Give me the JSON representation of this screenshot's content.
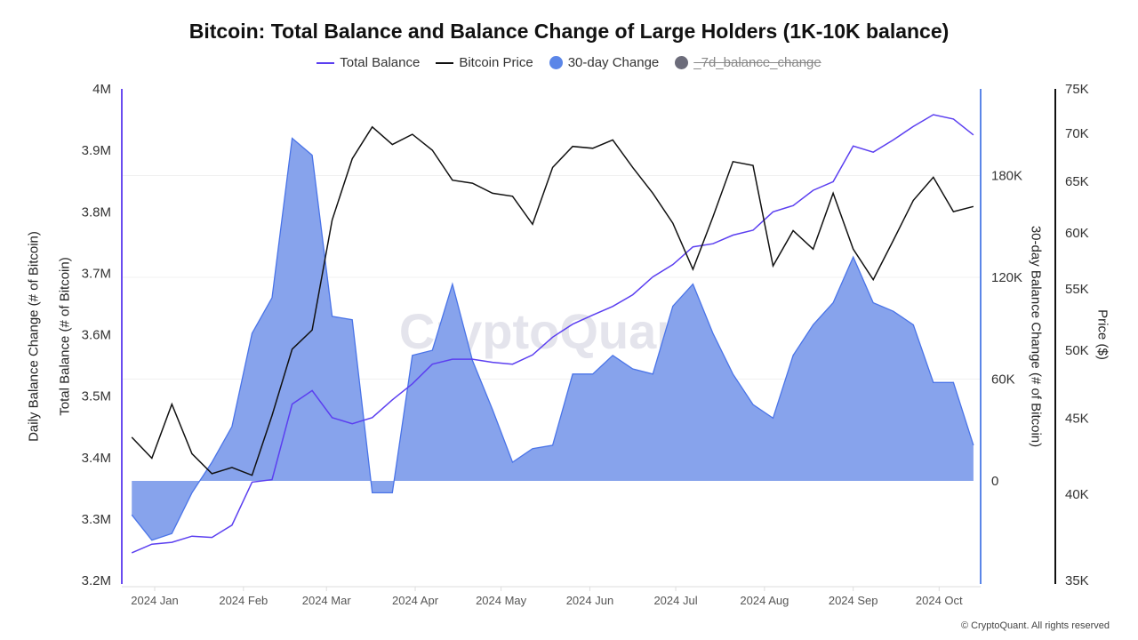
{
  "title": "Bitcoin: Total Balance and Balance Change of Large Holders (1K-10K balance)",
  "legend": [
    {
      "label": "Total Balance",
      "color": "#5b3ff0",
      "shape": "line",
      "visible": true
    },
    {
      "label": "Bitcoin Price",
      "color": "#111111",
      "shape": "line",
      "visible": true
    },
    {
      "label": "30-day Change",
      "color": "#5b86e8",
      "shape": "circle",
      "visible": true
    },
    {
      "label": "_7d_balance_change",
      "color": "#6c6c7a",
      "shape": "circle",
      "visible": false
    }
  ],
  "watermark": "CryptoQuant",
  "copyright": "© CryptoQuant. All rights reserved",
  "chart_data": {
    "type": "line",
    "title": "Bitcoin: Total Balance and Balance Change of Large Holders (1K-10K balance)",
    "x_tick_labels": [
      "2024 Jan",
      "2024 Feb",
      "2024 Mar",
      "2024 Apr",
      "2024 May",
      "2024 Jun",
      "2024 Jul",
      "2024 Aug",
      "2024 Sep",
      "2024 Oct"
    ],
    "x_tick_dates": [
      "2024-01-01",
      "2024-02-01",
      "2024-03-01",
      "2024-04-01",
      "2024-05-01",
      "2024-06-01",
      "2024-07-01",
      "2024-08-01",
      "2024-09-01",
      "2024-10-01"
    ],
    "axes": {
      "left_outer_label": "Daily Balance Change (# of Bitcoin)",
      "left_label": "Total Balance (# of Bitcoin)",
      "left_ticks": [
        "4M",
        "3.9M",
        "3.8M",
        "3.7M",
        "3.6M",
        "3.5M",
        "3.4M",
        "3.3M",
        "3.2M"
      ],
      "left_range": [
        3200000,
        4000000
      ],
      "right_inner_label": "30-day Balance Change (# of Bitcoin)",
      "right_inner_ticks": [
        "180K",
        "120K",
        "60K",
        "0"
      ],
      "right_inner_tick_values": [
        180000,
        120000,
        60000,
        0
      ],
      "right_outer_label": "Price ($)",
      "right_outer_ticks": [
        "75K",
        "70K",
        "65K",
        "60K",
        "55K",
        "50K",
        "45K",
        "40K",
        "35K"
      ],
      "right_outer_tick_values": [
        75000,
        70000,
        65000,
        60000,
        55000,
        50000,
        45000,
        40000,
        35000
      ],
      "right_outer_range": [
        35000,
        75000
      ],
      "right_outer_scale": "log",
      "grid": true
    },
    "x": [
      "2023-12-24",
      "2023-12-31",
      "2024-01-07",
      "2024-01-14",
      "2024-01-21",
      "2024-01-28",
      "2024-02-04",
      "2024-02-11",
      "2024-02-18",
      "2024-02-25",
      "2024-03-03",
      "2024-03-10",
      "2024-03-17",
      "2024-03-24",
      "2024-03-31",
      "2024-04-07",
      "2024-04-14",
      "2024-04-21",
      "2024-04-28",
      "2024-05-05",
      "2024-05-12",
      "2024-05-19",
      "2024-05-26",
      "2024-06-02",
      "2024-06-09",
      "2024-06-16",
      "2024-06-23",
      "2024-06-30",
      "2024-07-07",
      "2024-07-14",
      "2024-07-21",
      "2024-07-28",
      "2024-08-04",
      "2024-08-11",
      "2024-08-18",
      "2024-08-25",
      "2024-09-01",
      "2024-09-08",
      "2024-09-15",
      "2024-09-22",
      "2024-09-29",
      "2024-10-06",
      "2024-10-13"
    ],
    "series": [
      {
        "name": "Total Balance",
        "axis": "left",
        "color": "#5b3ff0",
        "values": [
          3245000,
          3259000,
          3262000,
          3272000,
          3270000,
          3290000,
          3360000,
          3364000,
          3487000,
          3509000,
          3465000,
          3455000,
          3465000,
          3494000,
          3520000,
          3552000,
          3560000,
          3560000,
          3555000,
          3552000,
          3567000,
          3596000,
          3617000,
          3632000,
          3646000,
          3665000,
          3694000,
          3714000,
          3743000,
          3748000,
          3762000,
          3770000,
          3800000,
          3810000,
          3835000,
          3849000,
          3907000,
          3897000,
          3917000,
          3939000,
          3958000,
          3951000,
          3925000
        ]
      },
      {
        "name": "Bitcoin Price",
        "axis": "right_outer",
        "color": "#111111",
        "values": [
          43700,
          42300,
          46000,
          42600,
          41300,
          41700,
          41200,
          45200,
          50100,
          51600,
          61200,
          67300,
          70700,
          68800,
          69900,
          68200,
          65100,
          64800,
          63800,
          63500,
          60800,
          66400,
          68600,
          68400,
          69300,
          66400,
          63800,
          60900,
          56700,
          61500,
          67000,
          66600,
          57000,
          60200,
          58500,
          63800,
          58500,
          55800,
          59300,
          63100,
          65400,
          62000,
          62500
        ]
      },
      {
        "name": "30-day Change",
        "axis": "right_inner",
        "color": "#5b86e8",
        "fill": "#87a3ec",
        "values": [
          -20000,
          -35000,
          -31000,
          -7000,
          11000,
          32000,
          87000,
          108000,
          202000,
          192000,
          97000,
          95000,
          -7000,
          -7000,
          74000,
          77000,
          116000,
          71000,
          42000,
          11000,
          19000,
          21000,
          63000,
          63000,
          74000,
          66000,
          63000,
          103000,
          116000,
          87000,
          63000,
          45000,
          37000,
          74000,
          92000,
          105000,
          132000,
          105000,
          100000,
          92000,
          58000,
          58000,
          21000
        ]
      }
    ]
  }
}
